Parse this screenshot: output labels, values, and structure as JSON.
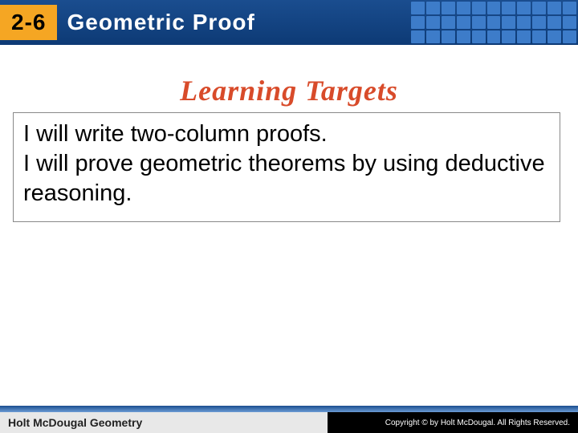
{
  "header": {
    "section_number": "2-6",
    "title": "Geometric Proof",
    "bg_gradient_top": "#1a4d8f",
    "bg_gradient_bottom": "#0d3a75",
    "accent_color": "#f5a623",
    "grid_cell_color": "#3d7cc9",
    "title_color": "#ffffff",
    "title_fontsize": 28
  },
  "main": {
    "heading": "Learning Targets",
    "heading_color": "#d84b2a",
    "heading_fontsize": 36,
    "targets": [
      "I will write two-column proofs.",
      "I will prove geometric theorems by using deductive reasoning."
    ],
    "target_fontsize": 29,
    "box_border_color": "#888888"
  },
  "footer": {
    "left_text": "Holt McDougal Geometry",
    "right_text": "Copyright © by Holt McDougal. All Rights Reserved.",
    "left_bg": "#e8e8e8",
    "right_bg": "#000000",
    "gradient_top": "#1a4d8f",
    "gradient_bottom": "#6b9bd4"
  }
}
